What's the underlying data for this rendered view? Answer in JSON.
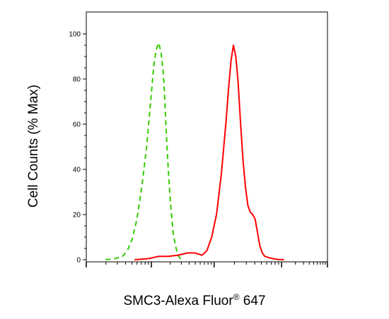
{
  "chart_data": {
    "type": "line",
    "title": "",
    "ylabel": "Cell Counts (% Max)",
    "xlabel": {
      "main": "SMC3-Alexa Fluor",
      "superscript": "®",
      "suffix": " 647"
    },
    "ylim": [
      0,
      100
    ],
    "yticks": [
      "0",
      "20",
      "40",
      "60",
      "80",
      "100"
    ],
    "xscale": "log",
    "xlim": [
      0,
      1
    ],
    "grid": false,
    "legend": "none",
    "series": [
      {
        "color": "#33cc00",
        "dash": "dashed",
        "x": [
          0.08,
          0.12,
          0.15,
          0.17,
          0.19,
          0.21,
          0.23,
          0.25,
          0.26,
          0.27,
          0.28,
          0.29,
          0.3,
          0.31,
          0.32,
          0.325,
          0.33,
          0.34,
          0.35,
          0.36,
          0.37,
          0.38,
          0.39,
          0.4
        ],
        "y": [
          0,
          0.5,
          1.5,
          4,
          9,
          18,
          32,
          50,
          62,
          74,
          86,
          93,
          96,
          92,
          82,
          72,
          60,
          40,
          24,
          12,
          6,
          2,
          0.5,
          0
        ]
      },
      {
        "color": "#ff0000",
        "dash": "solid",
        "x": [
          0.2,
          0.26,
          0.3,
          0.34,
          0.38,
          0.42,
          0.45,
          0.48,
          0.5,
          0.52,
          0.54,
          0.56,
          0.57,
          0.58,
          0.59,
          0.6,
          0.61,
          0.62,
          0.63,
          0.64,
          0.65,
          0.66,
          0.67,
          0.68,
          0.69,
          0.7,
          0.71,
          0.72,
          0.73,
          0.74,
          0.76,
          0.78,
          0.8,
          0.82
        ],
        "y": [
          0,
          0.5,
          1.5,
          1.5,
          2,
          3,
          3,
          2,
          4,
          10,
          20,
          38,
          50,
          62,
          76,
          88,
          95,
          90,
          78,
          60,
          44,
          32,
          24,
          21,
          20,
          18,
          12,
          6,
          3,
          1.5,
          0.8,
          0.3,
          0.1,
          0
        ]
      }
    ]
  }
}
